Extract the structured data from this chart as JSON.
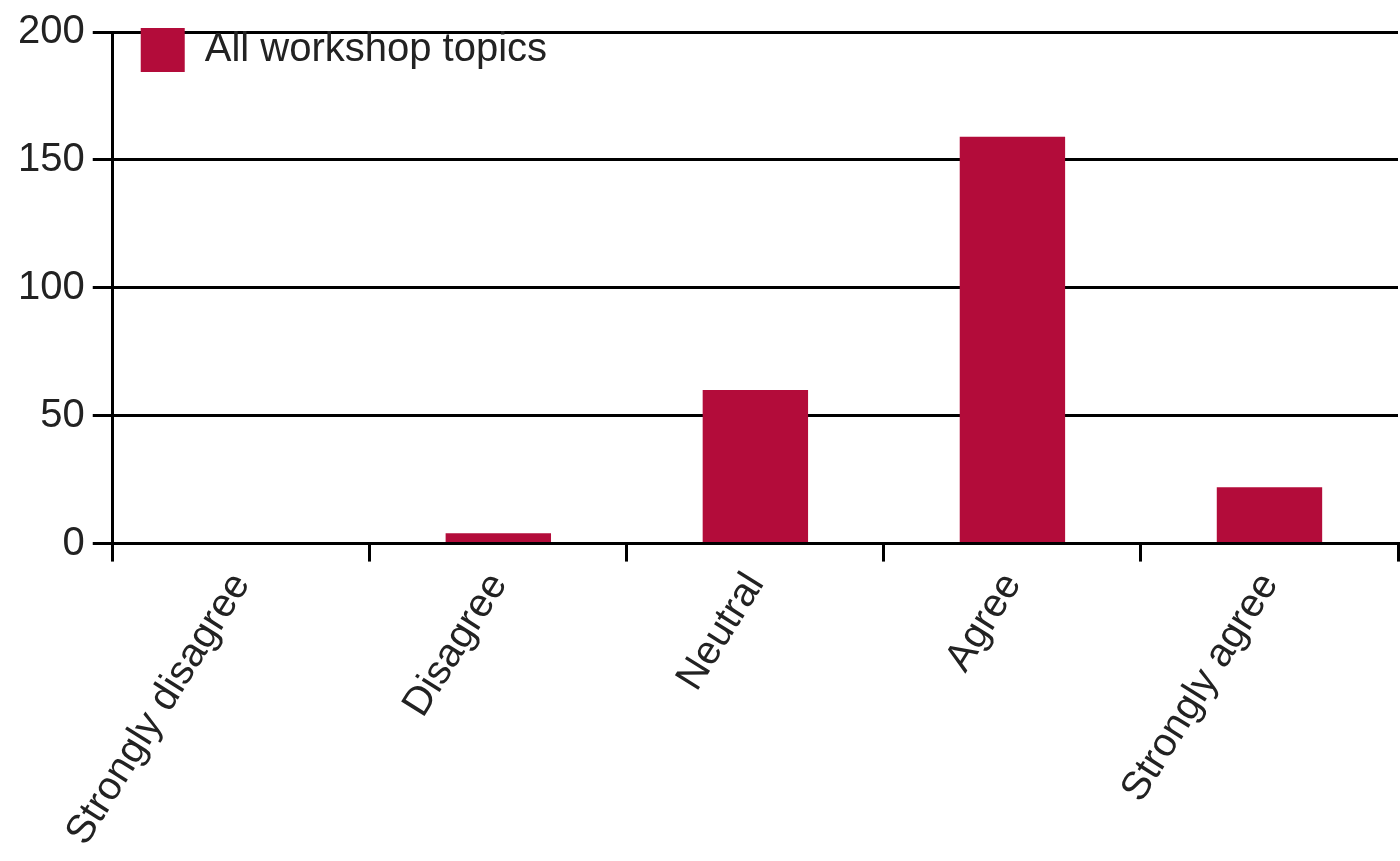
{
  "chart_data": {
    "type": "bar",
    "categories": [
      "Strongly disagree",
      "Disagree",
      "Neutral",
      "Agree",
      "Strongly agree"
    ],
    "series": [
      {
        "name": "All workshop topics",
        "color": "#b30c3a",
        "values": [
          0,
          4,
          60,
          159,
          22
        ]
      }
    ],
    "ylim": [
      0,
      200
    ],
    "yticks": [
      0,
      50,
      100,
      150,
      200
    ],
    "grid": "y",
    "legend": "top left"
  }
}
